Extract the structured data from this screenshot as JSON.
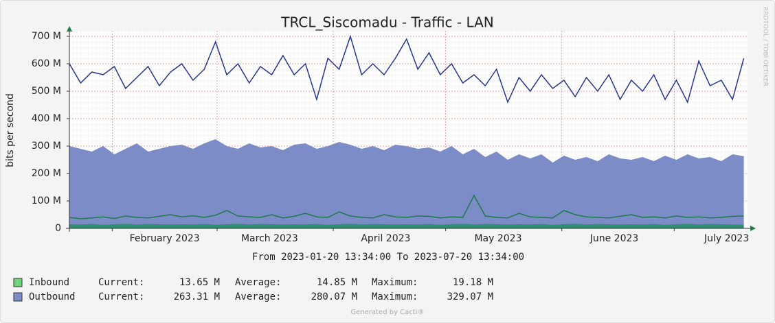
{
  "chart_data": {
    "type": "area",
    "title": "TRCL_Siscomadu - Traffic - LAN",
    "y_label": "bits per second",
    "side_note": "RRDTOOL / TOBI OETIKER",
    "period": "From 2023-01-20 13:34:00 To 2023-07-20 13:34:00",
    "footer": "Generated by Cacti®",
    "xlim": [
      0,
      181
    ],
    "xticks": [
      {
        "value": 25.43,
        "label": "February 2023"
      },
      {
        "value": 53.43,
        "label": "March 2023"
      },
      {
        "value": 84.43,
        "label": "April 2023"
      },
      {
        "value": 114.43,
        "label": "May 2023"
      },
      {
        "value": 145.43,
        "label": "June 2023"
      },
      {
        "value": 175.43,
        "label": "July 2023"
      }
    ],
    "xgrid_major": [
      11.43,
      39.43,
      70.43,
      100.43,
      131.43,
      161.43
    ],
    "ylim": [
      0,
      720000000.0
    ],
    "yticks": [
      0,
      {
        "value": 100000000.0,
        "label": "100 M"
      },
      {
        "value": 200000000.0,
        "label": "200 M"
      },
      {
        "value": 300000000.0,
        "label": "300 M"
      },
      {
        "value": 400000000.0,
        "label": "400 M"
      },
      {
        "value": 500000000.0,
        "label": "500 M"
      },
      {
        "value": 600000000.0,
        "label": "600 M"
      },
      {
        "value": 700000000.0,
        "label": "700 M"
      }
    ],
    "grid": true,
    "x": [
      0,
      3,
      6,
      9,
      12,
      15,
      18,
      21,
      24,
      27,
      30,
      33,
      36,
      39,
      42,
      45,
      48,
      51,
      54,
      57,
      60,
      63,
      66,
      69,
      72,
      75,
      78,
      81,
      84,
      87,
      90,
      93,
      96,
      99,
      102,
      105,
      108,
      111,
      114,
      117,
      120,
      123,
      126,
      129,
      132,
      135,
      138,
      141,
      144,
      147,
      150,
      153,
      156,
      159,
      162,
      165,
      168,
      171,
      174,
      177,
      180
    ],
    "series": [
      {
        "name": "Outbound",
        "style": "area",
        "color": "#7b8cc6",
        "values": [
          300000000.0,
          290000000.0,
          280000000.0,
          300000000.0,
          270000000.0,
          290000000.0,
          310000000.0,
          280000000.0,
          290000000.0,
          300000000.0,
          305000000.0,
          290000000.0,
          310000000.0,
          325000000.0,
          300000000.0,
          290000000.0,
          310000000.0,
          295000000.0,
          300000000.0,
          285000000.0,
          305000000.0,
          310000000.0,
          290000000.0,
          300000000.0,
          315000000.0,
          305000000.0,
          290000000.0,
          300000000.0,
          285000000.0,
          305000000.0,
          300000000.0,
          290000000.0,
          295000000.0,
          280000000.0,
          300000000.0,
          270000000.0,
          290000000.0,
          260000000.0,
          280000000.0,
          250000000.0,
          270000000.0,
          255000000.0,
          270000000.0,
          240000000.0,
          265000000.0,
          250000000.0,
          260000000.0,
          245000000.0,
          270000000.0,
          255000000.0,
          250000000.0,
          260000000.0,
          245000000.0,
          265000000.0,
          250000000.0,
          270000000.0,
          255000000.0,
          260000000.0,
          245000000.0,
          270000000.0,
          263000000.0
        ]
      },
      {
        "name": "Inbound",
        "style": "area",
        "color": "#2f8f72",
        "values": [
          15000000.0,
          14000000.0,
          16000000.0,
          13000000.0,
          15000000.0,
          17000000.0,
          14000000.0,
          16000000.0,
          15000000.0,
          14000000.0,
          15000000.0,
          14000000.0,
          16000000.0,
          13000000.0,
          15000000.0,
          17000000.0,
          14000000.0,
          16000000.0,
          15000000.0,
          14000000.0,
          15000000.0,
          14000000.0,
          16000000.0,
          13000000.0,
          15000000.0,
          17000000.0,
          14000000.0,
          16000000.0,
          15000000.0,
          14000000.0,
          15000000.0,
          14000000.0,
          16000000.0,
          13000000.0,
          15000000.0,
          17000000.0,
          14000000.0,
          16000000.0,
          15000000.0,
          14000000.0,
          15000000.0,
          14000000.0,
          16000000.0,
          13000000.0,
          15000000.0,
          17000000.0,
          14000000.0,
          16000000.0,
          15000000.0,
          14000000.0,
          15000000.0,
          14000000.0,
          16000000.0,
          13000000.0,
          15000000.0,
          17000000.0,
          14000000.0,
          16000000.0,
          15000000.0,
          14000000.0,
          13650000.0
        ]
      },
      {
        "style": "line",
        "color": "#1e7a4a",
        "values": [
          40000000.0,
          35000000.0,
          38000000.0,
          42000000.0,
          36000000.0,
          45000000.0,
          40000000.0,
          38000000.0,
          44000000.0,
          50000000.0,
          42000000.0,
          46000000.0,
          40000000.0,
          48000000.0,
          65000000.0,
          45000000.0,
          42000000.0,
          40000000.0,
          50000000.0,
          38000000.0,
          44000000.0,
          55000000.0,
          42000000.0,
          40000000.0,
          60000000.0,
          45000000.0,
          40000000.0,
          38000000.0,
          50000000.0,
          42000000.0,
          40000000.0,
          45000000.0,
          44000000.0,
          38000000.0,
          42000000.0,
          40000000.0,
          120000000.0,
          45000000.0,
          40000000.0,
          38000000.0,
          55000000.0,
          42000000.0,
          40000000.0,
          38000000.0,
          65000000.0,
          50000000.0,
          42000000.0,
          40000000.0,
          38000000.0,
          44000000.0,
          50000000.0,
          40000000.0,
          42000000.0,
          38000000.0,
          45000000.0,
          40000000.0,
          42000000.0,
          38000000.0,
          40000000.0,
          44000000.0,
          45000000.0
        ]
      },
      {
        "style": "line",
        "color": "#24358f",
        "values": [
          600000000.0,
          530000000.0,
          570000000.0,
          560000000.0,
          590000000.0,
          510000000.0,
          550000000.0,
          590000000.0,
          520000000.0,
          570000000.0,
          600000000.0,
          540000000.0,
          580000000.0,
          680000000.0,
          560000000.0,
          600000000.0,
          530000000.0,
          590000000.0,
          560000000.0,
          630000000.0,
          560000000.0,
          600000000.0,
          470000000.0,
          620000000.0,
          580000000.0,
          700000000.0,
          560000000.0,
          600000000.0,
          560000000.0,
          620000000.0,
          690000000.0,
          580000000.0,
          640000000.0,
          560000000.0,
          600000000.0,
          530000000.0,
          560000000.0,
          520000000.0,
          580000000.0,
          460000000.0,
          550000000.0,
          500000000.0,
          560000000.0,
          510000000.0,
          540000000.0,
          480000000.0,
          550000000.0,
          500000000.0,
          560000000.0,
          470000000.0,
          540000000.0,
          500000000.0,
          560000000.0,
          470000000.0,
          540000000.0,
          460000000.0,
          610000000.0,
          520000000.0,
          540000000.0,
          470000000.0,
          620000000.0
        ]
      }
    ],
    "legend": [
      {
        "name": "Inbound",
        "swatch": "#6fd37a",
        "stats": [
          {
            "label": "Current:",
            "value": 13650000.0,
            "value_label": "13.65 M"
          },
          {
            "label": "Average:",
            "value": 14850000.0,
            "value_label": "14.85 M"
          },
          {
            "label": "Maximum:",
            "value": 19180000.0,
            "value_label": "19.18 M"
          }
        ]
      },
      {
        "name": "Outbound",
        "swatch": "#7b8cc6",
        "stats": [
          {
            "label": "Current:",
            "value": 263310000.0,
            "value_label": "263.31 M"
          },
          {
            "label": "Average:",
            "value": 280070000.0,
            "value_label": "280.07 M"
          },
          {
            "label": "Maximum:",
            "value": 329070000.0,
            "value_label": "329.07 M"
          }
        ]
      }
    ]
  }
}
